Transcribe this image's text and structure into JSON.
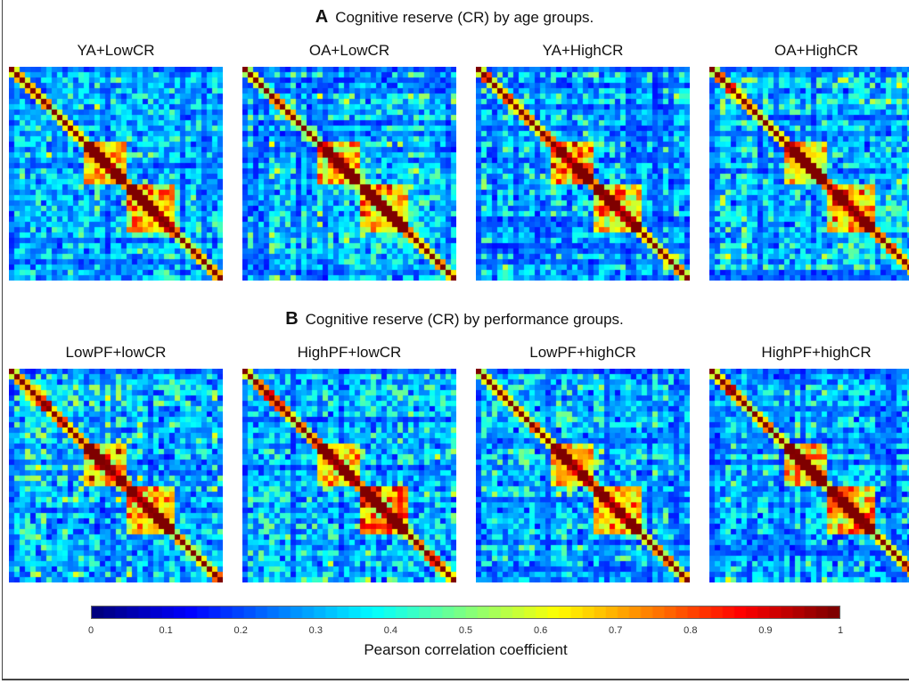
{
  "sections": [
    {
      "letter": "A",
      "title": "Cognitive reserve (CR) by age groups."
    },
    {
      "letter": "B",
      "title": "Cognitive reserve (CR) by performance groups."
    }
  ],
  "chart_data": [
    {
      "type": "heatmap",
      "title": "YA+LowCR",
      "size": 40,
      "diagonal": 1
    },
    {
      "type": "heatmap",
      "title": "OA+LowCR",
      "size": 40,
      "diagonal": 1
    },
    {
      "type": "heatmap",
      "title": "YA+HighCR",
      "size": 40,
      "diagonal": 1
    },
    {
      "type": "heatmap",
      "title": "OA+HighCR",
      "size": 40,
      "diagonal": 1
    },
    {
      "type": "heatmap",
      "title": "LowPF+lowCR",
      "size": 40,
      "diagonal": 1
    },
    {
      "type": "heatmap",
      "title": "HighPF+lowCR",
      "size": 40,
      "diagonal": 1
    },
    {
      "type": "heatmap",
      "title": "LowPF+highCR",
      "size": 40,
      "diagonal": 1
    },
    {
      "type": "heatmap",
      "title": "HighPF+highCR",
      "size": 40,
      "diagonal": 1
    }
  ],
  "colorbar": {
    "label": "Pearson correlation coefficient",
    "colormap": "jet",
    "range": [
      0,
      1
    ],
    "ticks": [
      "0",
      "0.1",
      "0.2",
      "0.3",
      "0.4",
      "0.5",
      "0.6",
      "0.7",
      "0.8",
      "0.9",
      "1"
    ]
  }
}
